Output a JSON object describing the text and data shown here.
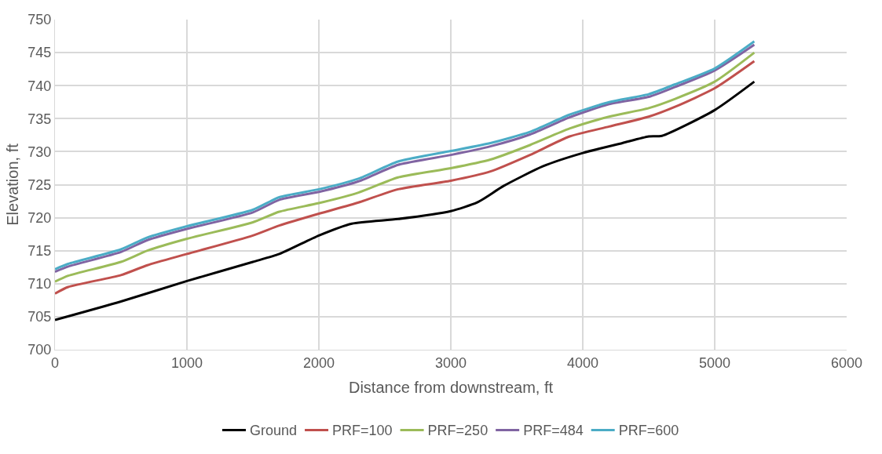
{
  "chart_data": {
    "type": "line",
    "xlabel": "Distance from downstream, ft",
    "ylabel": "Elevation, ft",
    "xlim": [
      0,
      6000
    ],
    "xticks": [
      0,
      1000,
      2000,
      3000,
      4000,
      5000,
      6000
    ],
    "ylim": [
      700,
      750
    ],
    "yticks": [
      700,
      705,
      710,
      715,
      720,
      725,
      730,
      735,
      740,
      745,
      750
    ],
    "grid": true,
    "legend": "bottom",
    "marker": "none",
    "line_style": "solid",
    "series": [
      {
        "name": "Ground",
        "color": "#000000",
        "x": [
          0,
          500,
          1000,
          1500,
          1700,
          2000,
          2250,
          2600,
          3000,
          3200,
          3400,
          3700,
          4000,
          4300,
          4500,
          4600,
          5000,
          5300
        ],
        "values": [
          704.5,
          707.3,
          710.4,
          713.3,
          714.5,
          717.3,
          719.1,
          719.8,
          721.0,
          722.3,
          724.8,
          727.8,
          729.8,
          731.3,
          732.3,
          732.4,
          736.3,
          740.6
        ]
      },
      {
        "name": "PRF=100",
        "color": "#c0504d",
        "x": [
          0,
          100,
          500,
          700,
          1000,
          1500,
          1700,
          2000,
          2300,
          2600,
          3000,
          3300,
          3600,
          3900,
          4200,
          4500,
          4700,
          5000,
          5300
        ],
        "values": [
          708.5,
          709.5,
          711.3,
          712.8,
          714.5,
          717.3,
          718.8,
          720.6,
          722.3,
          724.3,
          725.6,
          727.0,
          729.5,
          732.3,
          733.8,
          735.3,
          736.8,
          739.6,
          743.7
        ]
      },
      {
        "name": "PRF=250",
        "color": "#9bbb59",
        "x": [
          0,
          100,
          500,
          700,
          1000,
          1500,
          1700,
          2000,
          2300,
          2600,
          3000,
          3300,
          3600,
          3900,
          4200,
          4500,
          4700,
          5000,
          5300
        ],
        "values": [
          710.3,
          711.2,
          713.3,
          715.0,
          716.8,
          719.3,
          720.9,
          722.2,
          723.8,
          726.1,
          727.5,
          728.8,
          731.0,
          733.5,
          735.3,
          736.6,
          738.0,
          740.6,
          745.0
        ]
      },
      {
        "name": "PRF=484",
        "color": "#8064a2",
        "x": [
          0,
          100,
          500,
          700,
          1000,
          1500,
          1700,
          2000,
          2300,
          2600,
          3000,
          3300,
          3600,
          3900,
          4200,
          4500,
          4700,
          5000,
          5300
        ],
        "values": [
          711.8,
          712.6,
          714.8,
          716.6,
          718.3,
          720.8,
          722.7,
          723.9,
          725.5,
          728.0,
          729.5,
          730.8,
          732.6,
          735.2,
          737.2,
          738.3,
          739.8,
          742.3,
          746.2
        ]
      },
      {
        "name": "PRF=600",
        "color": "#4bacc6",
        "x": [
          0,
          100,
          500,
          700,
          1000,
          1500,
          1700,
          2000,
          2300,
          2600,
          3000,
          3300,
          3600,
          3900,
          4200,
          4500,
          4700,
          5000,
          5300
        ],
        "values": [
          712.2,
          713.0,
          715.2,
          717.0,
          718.7,
          721.2,
          723.1,
          724.3,
          725.9,
          728.5,
          730.1,
          731.3,
          733.0,
          735.6,
          737.5,
          738.7,
          740.2,
          742.6,
          746.7
        ]
      }
    ]
  }
}
